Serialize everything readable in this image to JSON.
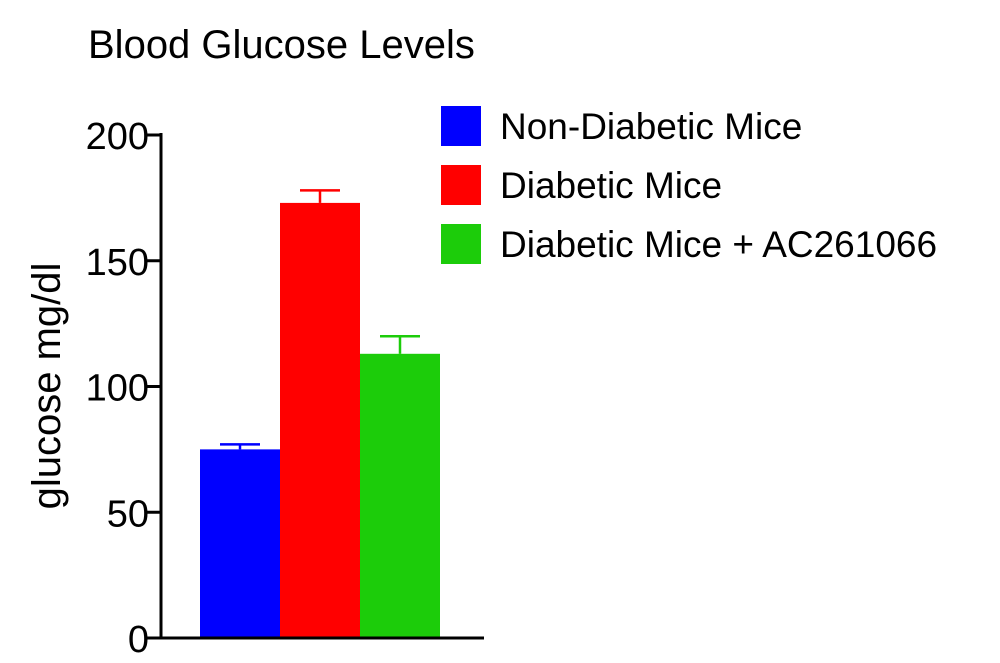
{
  "chart_data": {
    "type": "bar",
    "title": "Blood Glucose Levels",
    "ylabel": "glucose mg/dl",
    "xlabel": "",
    "ylim": [
      0,
      200
    ],
    "yticks": [
      0,
      50,
      100,
      150,
      200
    ],
    "grid": false,
    "legend_position": "right",
    "series": [
      {
        "name": "Non-Diabetic Mice",
        "value": 75,
        "error": 2,
        "color": "#0000ff"
      },
      {
        "name": "Diabetic Mice",
        "value": 173,
        "error": 5,
        "color": "#ff0000"
      },
      {
        "name": "Diabetic Mice + AC261066",
        "value": 113,
        "error": 7,
        "color": "#1ccc0a"
      }
    ]
  }
}
